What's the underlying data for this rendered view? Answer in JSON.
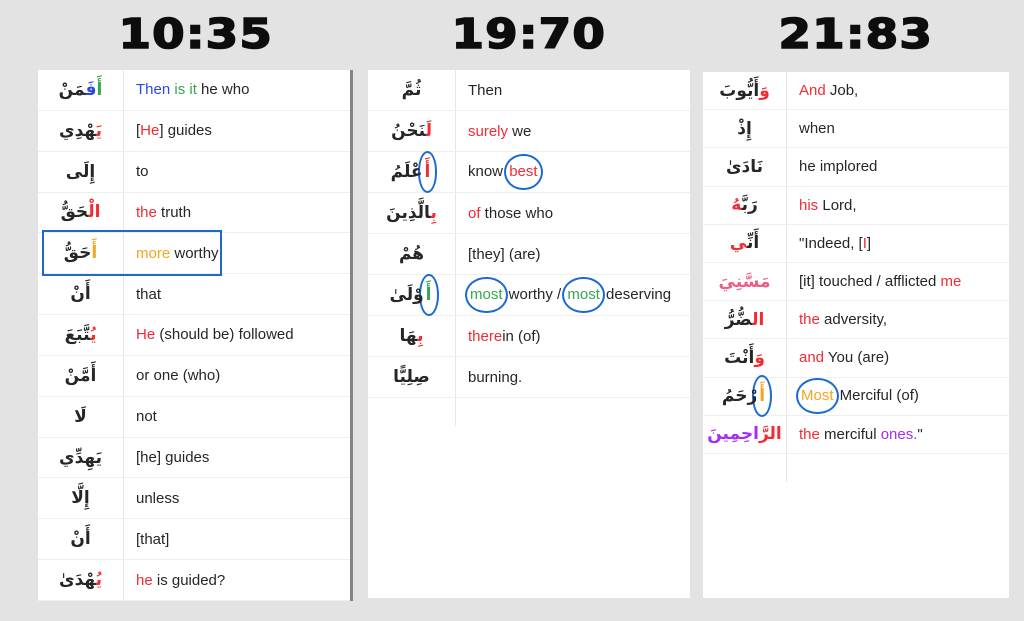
{
  "colors": {
    "ink": "#262626",
    "red": "#f32b32",
    "blue": "#2b47e8",
    "green": "#34a84d",
    "orange": "#f5a41f",
    "purple": "#a32ff0",
    "pink": "#ef5c86",
    "circle": "#1b6ad2",
    "box": "#1b6ad2"
  },
  "columns": [
    {
      "header": "10:35",
      "rows": [
        {
          "arabic": [
            {
              "t": "أَ",
              "c": "green"
            },
            {
              "t": "فَ‍",
              "c": "blue"
            },
            {
              "t": "‍مَنْ",
              "c": "ink"
            }
          ],
          "english": [
            {
              "t": "Then",
              "c": "blue"
            },
            {
              "t": " is it",
              "c": "green"
            },
            {
              "t": " he who",
              "c": "ink"
            }
          ]
        },
        {
          "arabic": [
            {
              "t": "يَ‍",
              "c": "red"
            },
            {
              "t": "‍هْدِي",
              "c": "ink"
            }
          ],
          "english": [
            {
              "t": "[",
              "c": "ink"
            },
            {
              "t": "He",
              "c": "red"
            },
            {
              "t": "] guides",
              "c": "ink"
            }
          ]
        },
        {
          "arabic": [
            {
              "t": "إِلَى",
              "c": "ink"
            }
          ],
          "english": [
            {
              "t": "to",
              "c": "ink"
            }
          ]
        },
        {
          "arabic": [
            {
              "t": "الْ‍",
              "c": "red"
            },
            {
              "t": "‍حَقُّ",
              "c": "ink"
            }
          ],
          "english": [
            {
              "t": "the",
              "c": "red"
            },
            {
              "t": " truth",
              "c": "ink"
            }
          ]
        },
        {
          "boxed": true,
          "arabic": [
            {
              "t": "أَ",
              "c": "orange"
            },
            {
              "t": "حَقُّ",
              "c": "ink"
            }
          ],
          "english": [
            {
              "t": "more",
              "c": "orange"
            },
            {
              "t": " worthy",
              "c": "ink"
            }
          ]
        },
        {
          "arabic": [
            {
              "t": "أَنْ",
              "c": "ink"
            }
          ],
          "english": [
            {
              "t": "that",
              "c": "ink"
            }
          ]
        },
        {
          "arabic": [
            {
              "t": "يُ‍",
              "c": "red"
            },
            {
              "t": "‍تَّبَعَ",
              "c": "ink"
            }
          ],
          "english": [
            {
              "t": "He",
              "c": "red"
            },
            {
              "t": " (should be) followed",
              "c": "ink"
            }
          ]
        },
        {
          "arabic": [
            {
              "t": "أَمَّنْ",
              "c": "ink"
            }
          ],
          "english": [
            {
              "t": "or one (who)",
              "c": "ink"
            }
          ]
        },
        {
          "arabic": [
            {
              "t": "لَا",
              "c": "ink"
            }
          ],
          "english": [
            {
              "t": "not",
              "c": "ink"
            }
          ]
        },
        {
          "arabic": [
            {
              "t": "يَهِدِّي",
              "c": "ink"
            }
          ],
          "english": [
            {
              "t": "[he] guides",
              "c": "ink"
            }
          ]
        },
        {
          "arabic": [
            {
              "t": "إِلَّا",
              "c": "ink"
            }
          ],
          "english": [
            {
              "t": "unless",
              "c": "ink"
            }
          ]
        },
        {
          "arabic": [
            {
              "t": "أَنْ",
              "c": "ink"
            }
          ],
          "english": [
            {
              "t": "[that]",
              "c": "ink"
            }
          ]
        },
        {
          "arabic": [
            {
              "t": "يُ‍",
              "c": "red"
            },
            {
              "t": "‍هْدَىٰ",
              "c": "ink"
            }
          ],
          "english": [
            {
              "t": "he",
              "c": "red"
            },
            {
              "t": " is guided?",
              "c": "ink"
            }
          ]
        }
      ]
    },
    {
      "header": "19:70",
      "rows": [
        {
          "arabic": [
            {
              "t": "ثُمَّ",
              "c": "ink"
            }
          ],
          "english": [
            {
              "t": "Then",
              "c": "ink"
            }
          ]
        },
        {
          "arabic": [
            {
              "t": "لَ‍",
              "c": "red"
            },
            {
              "t": "‍نَحْنُ",
              "c": "ink"
            }
          ],
          "english": [
            {
              "t": "surely",
              "c": "red"
            },
            {
              "t": " we",
              "c": "ink"
            }
          ]
        },
        {
          "arabic": [
            {
              "t": "أَ",
              "c": "red",
              "circled": true
            },
            {
              "t": "عْلَمُ",
              "c": "ink"
            }
          ],
          "english": [
            {
              "t": "know ",
              "c": "ink"
            },
            {
              "t": "best",
              "c": "red",
              "circled": true
            }
          ]
        },
        {
          "arabic": [
            {
              "t": "بِ‍",
              "c": "red"
            },
            {
              "t": "‍الَّذِينَ",
              "c": "ink"
            }
          ],
          "english": [
            {
              "t": "of",
              "c": "red"
            },
            {
              "t": " those who",
              "c": "ink"
            }
          ]
        },
        {
          "arabic": [
            {
              "t": "هُمْ",
              "c": "ink"
            }
          ],
          "english": [
            {
              "t": "[they] (are)",
              "c": "ink"
            }
          ]
        },
        {
          "arabic": [
            {
              "t": "أَ",
              "c": "green",
              "circled": true
            },
            {
              "t": "وْلَىٰ",
              "c": "ink"
            }
          ],
          "english": [
            {
              "t": "most",
              "c": "green",
              "circled": true
            },
            {
              "t": " worthy / ",
              "c": "ink"
            },
            {
              "t": "most",
              "c": "green",
              "circled": true
            },
            {
              "t": " deserving",
              "c": "ink"
            }
          ]
        },
        {
          "arabic": [
            {
              "t": "بِ‍",
              "c": "red"
            },
            {
              "t": "‍هَا",
              "c": "ink"
            }
          ],
          "english": [
            {
              "t": "there",
              "c": "red"
            },
            {
              "t": "in (of)",
              "c": "ink"
            }
          ]
        },
        {
          "arabic": [
            {
              "t": "صِلِيًّا",
              "c": "ink"
            }
          ],
          "english": [
            {
              "t": "burning.",
              "c": "ink"
            }
          ]
        }
      ]
    },
    {
      "header": "21:83",
      "rows": [
        {
          "arabic": [
            {
              "t": "وَ",
              "c": "red"
            },
            {
              "t": "أَيُّوبَ",
              "c": "ink"
            }
          ],
          "english": [
            {
              "t": "And",
              "c": "red"
            },
            {
              "t": " Job,",
              "c": "ink"
            }
          ]
        },
        {
          "arabic": [
            {
              "t": "إِذْ",
              "c": "ink"
            }
          ],
          "english": [
            {
              "t": "when",
              "c": "ink"
            }
          ]
        },
        {
          "arabic": [
            {
              "t": "نَادَىٰ",
              "c": "ink"
            }
          ],
          "english": [
            {
              "t": "he implored",
              "c": "ink"
            }
          ]
        },
        {
          "arabic": [
            {
              "t": "رَبَّ‍",
              "c": "ink"
            },
            {
              "t": "‍هُ",
              "c": "red"
            }
          ],
          "english": [
            {
              "t": "his",
              "c": "red"
            },
            {
              "t": " Lord,",
              "c": "ink"
            }
          ]
        },
        {
          "arabic": [
            {
              "t": "أَنِّ‍",
              "c": "ink"
            },
            {
              "t": "‍ي",
              "c": "red"
            }
          ],
          "english": [
            {
              "t": "\"Indeed, [",
              "c": "ink"
            },
            {
              "t": "I",
              "c": "red"
            },
            {
              "t": "]",
              "c": "ink"
            }
          ]
        },
        {
          "arabic": [
            {
              "t": "مَسَّنِيَ",
              "c": "pink"
            }
          ],
          "english": [
            {
              "t": "[it] touched / afflicted ",
              "c": "ink"
            },
            {
              "t": "me",
              "c": "red"
            }
          ]
        },
        {
          "arabic": [
            {
              "t": "ال‍",
              "c": "red"
            },
            {
              "t": "‍ضُّرُّ",
              "c": "ink"
            }
          ],
          "english": [
            {
              "t": "the",
              "c": "red"
            },
            {
              "t": " adversity,",
              "c": "ink"
            }
          ]
        },
        {
          "arabic": [
            {
              "t": "وَ",
              "c": "red"
            },
            {
              "t": "أَنْتَ",
              "c": "ink"
            }
          ],
          "english": [
            {
              "t": "and",
              "c": "red"
            },
            {
              "t": " You (are)",
              "c": "ink"
            }
          ]
        },
        {
          "arabic": [
            {
              "t": "أَ",
              "c": "orange",
              "circled": true
            },
            {
              "t": "رْحَمُ",
              "c": "ink"
            }
          ],
          "english": [
            {
              "t": "Most",
              "c": "orange",
              "circled": true
            },
            {
              "t": " Merciful (of)",
              "c": "ink"
            }
          ]
        },
        {
          "arabic": [
            {
              "t": "الرَّ",
              "c": "red"
            },
            {
              "t": "احِمِينَ",
              "c": "purple"
            }
          ],
          "english": [
            {
              "t": "the",
              "c": "red"
            },
            {
              "t": " merciful ",
              "c": "ink"
            },
            {
              "t": "ones.",
              "c": "purple"
            },
            {
              "t": "\"",
              "c": "ink"
            }
          ]
        }
      ]
    }
  ]
}
